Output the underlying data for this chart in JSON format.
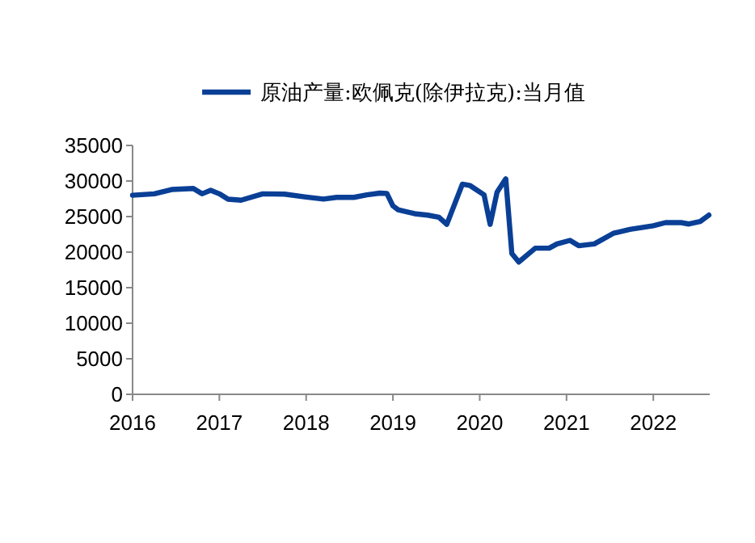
{
  "chart_data": {
    "type": "line",
    "legend": "top",
    "grid": false,
    "marker": "none",
    "line_style": "solid",
    "xlim": [
      2016,
      2022.65
    ],
    "xticks": [
      2016,
      2017,
      2018,
      2019,
      2020,
      2021,
      2022
    ],
    "ylim": [
      0,
      35000
    ],
    "yticks": [
      0,
      5000,
      10000,
      15000,
      20000,
      25000,
      30000,
      35000
    ],
    "series": [
      {
        "name": "原油产量:欧佩克(除伊拉克):当月值",
        "color": "#0a3f96",
        "x": [
          2016.0,
          2016.25,
          2016.45,
          2016.7,
          2016.8,
          2016.9,
          2017.0,
          2017.1,
          2017.25,
          2017.5,
          2017.75,
          2018.0,
          2018.2,
          2018.35,
          2018.55,
          2018.7,
          2018.85,
          2018.93,
          2019.0,
          2019.06,
          2019.25,
          2019.4,
          2019.53,
          2019.62,
          2019.8,
          2019.89,
          2020.05,
          2020.12,
          2020.2,
          2020.3,
          2020.37,
          2020.45,
          2020.64,
          2020.8,
          2020.89,
          2021.04,
          2021.14,
          2021.32,
          2021.54,
          2021.73,
          2022.0,
          2022.14,
          2022.32,
          2022.41,
          2022.54,
          2022.64
        ],
        "values": [
          28000,
          28200,
          28800,
          28950,
          28200,
          28700,
          28200,
          27450,
          27300,
          28200,
          28150,
          27750,
          27450,
          27700,
          27700,
          28050,
          28300,
          28250,
          26500,
          25950,
          25400,
          25200,
          24900,
          23900,
          29550,
          29350,
          28050,
          23900,
          28450,
          30300,
          19800,
          18600,
          20550,
          20550,
          21150,
          21650,
          20900,
          21150,
          22650,
          23200,
          23700,
          24150,
          24150,
          23950,
          24300,
          25200
        ]
      }
    ]
  }
}
